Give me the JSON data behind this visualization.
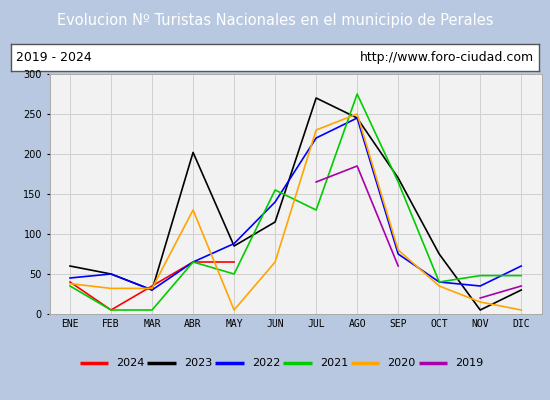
{
  "title": "Evolucion Nº Turistas Nacionales en el municipio de Perales",
  "subtitle_left": "2019 - 2024",
  "subtitle_right": "http://www.foro-ciudad.com",
  "months": [
    "ENE",
    "FEB",
    "MAR",
    "ABR",
    "MAY",
    "JUN",
    "JUL",
    "AGO",
    "SEP",
    "OCT",
    "NOV",
    "DIC"
  ],
  "series_order": [
    "2024",
    "2023",
    "2022",
    "2021",
    "2020",
    "2019"
  ],
  "series": {
    "2024": {
      "color": "#ff0000",
      "values": [
        40,
        5,
        35,
        65,
        65,
        null,
        null,
        null,
        null,
        null,
        null,
        null
      ]
    },
    "2023": {
      "color": "#000000",
      "values": [
        60,
        50,
        30,
        202,
        85,
        115,
        270,
        245,
        170,
        75,
        5,
        30
      ]
    },
    "2022": {
      "color": "#0000ff",
      "values": [
        45,
        50,
        30,
        65,
        88,
        140,
        220,
        245,
        75,
        40,
        35,
        60
      ]
    },
    "2021": {
      "color": "#00cc00",
      "values": [
        35,
        5,
        5,
        65,
        50,
        155,
        130,
        275,
        165,
        40,
        48,
        48
      ]
    },
    "2020": {
      "color": "#ffa500",
      "values": [
        38,
        32,
        32,
        130,
        5,
        65,
        230,
        250,
        80,
        35,
        15,
        5
      ]
    },
    "2019": {
      "color": "#aa00aa",
      "values": [
        null,
        null,
        null,
        null,
        null,
        null,
        165,
        185,
        60,
        null,
        20,
        35
      ]
    }
  },
  "ylim": [
    0,
    300
  ],
  "yticks": [
    0,
    50,
    100,
    150,
    200,
    250,
    300
  ],
  "title_bg_color": "#4f81bd",
  "title_color": "#ffffff",
  "title_fontsize": 10.5,
  "subtitle_fontsize": 9,
  "header_bg_color": "#ffffff",
  "plot_bg_color": "#f2f2f2",
  "outer_bg_color": "#b8c8e0",
  "grid_color": "#d0d0d0",
  "legend_bg_color": "#ffffff",
  "legend_border_color": "#000000",
  "tick_fontsize": 7,
  "legend_fontsize": 8
}
